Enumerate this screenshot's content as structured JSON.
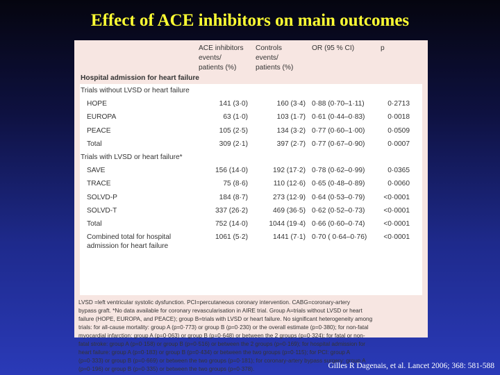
{
  "slide": {
    "title": "Effect of ACE inhibitors on main outcomes",
    "citation": "Gilles R Dagenais, et al. Lancet 2006; 368: 581-588"
  },
  "table": {
    "headers": {
      "ace_line1": "ACE inhibitors",
      "ace_line2": "events/",
      "ace_line3": "patients (%)",
      "ctrl_line1": "Controls",
      "ctrl_line2": "events/",
      "ctrl_line3": "patients (%)",
      "or": "OR (95 % CI)",
      "p": "p"
    },
    "section_title": "Hospital admission for heart failure",
    "groups": [
      {
        "title": "Trials without LVSD or heart failure",
        "rows": [
          {
            "name": "HOPE",
            "ace": "141 (3·0)",
            "ctrl": "160 (3·4)",
            "or": "0·88 (0·70–1·11)",
            "p": "0·2713"
          },
          {
            "name": "EUROPA",
            "ace": "63 (1·0)",
            "ctrl": "103 (1·7)",
            "or": "0·61 (0·44–0·83)",
            "p": "0·0018"
          },
          {
            "name": "PEACE",
            "ace": "105 (2·5)",
            "ctrl": "134 (3·2)",
            "or": "0·77 (0·60–1·00)",
            "p": "0·0509"
          },
          {
            "name": "Total",
            "ace": "309 (2·1)",
            "ctrl": "397 (2·7)",
            "or": "0·77 (0·67–0·90)",
            "p": "0·0007"
          }
        ]
      },
      {
        "title": "Trials with LVSD or heart failure*",
        "rows": [
          {
            "name": "SAVE",
            "ace": "156 (14·0)",
            "ctrl": "192 (17·2)",
            "or": "0·78 (0·62–0·99)",
            "p": "0·0365"
          },
          {
            "name": "TRACE",
            "ace": "75 (8·6)",
            "ctrl": "110 (12·6)",
            "or": "0·65 (0·48–0·89)",
            "p": "0·0060"
          },
          {
            "name": "SOLVD-P",
            "ace": "184 (8·7)",
            "ctrl": "273 (12·9)",
            "or": "0·64 (0·53–0·79)",
            "p": "<0·0001"
          },
          {
            "name": "SOLVD-T",
            "ace": "337 (26·2)",
            "ctrl": "469 (36·5)",
            "or": "0·62 (0·52–0·73)",
            "p": "<0·0001"
          },
          {
            "name": "Total",
            "ace": "752 (14·0)",
            "ctrl": "1044 (19·4)",
            "or": "0·66 (0·60–0·74)",
            "p": "<0·0001"
          }
        ]
      }
    ],
    "combined": {
      "line1": "Combined total for hospital",
      "line2": "admission for heart failure",
      "ace": "1061 (5·2)",
      "ctrl": "1441 (7·1)",
      "or": "0·70 ( 0·64–0·76)",
      "p": "<0·0001"
    },
    "footnote": [
      "LVSD =left ventricular systolic dysfunction. PCI=percutaneous coronary intervention. CABG=coronary-artery",
      "bypass graft. *No data available for coronary revascularisation in AIRE trial. Group A=trials without LVSD or heart",
      "failure (HOPE, EUROPA, and PEACE); group B=trials with LVSD or heart failure. No significant heterogeneity among",
      "trials: for all-cause mortality: group A (p=0·773) or group B (p=0·230) or the overall estimate (p=0·380); for non-fatal",
      "myocardial infarction: group A (p=0·063) or group B (p=0·648) or between the 2 groups (p=0·324); for fatal or non-",
      "fatal stroke: group A (p=0·158) or group B (p=0·516) or between the 2 groups (p=0·169); for hospital admission for",
      "heart failure: group A (p=0·183) or group B (p=0·434) or between the two groups (p=0·115); for PCI: group A",
      "(p=0·333) or group B (p=0·669) or between the two groups (p=0·181); for coronary-artery bypass surgery: group A",
      "(p=0·196) or group B (p=0·335) or between the two groups (p=0·378)."
    ]
  }
}
